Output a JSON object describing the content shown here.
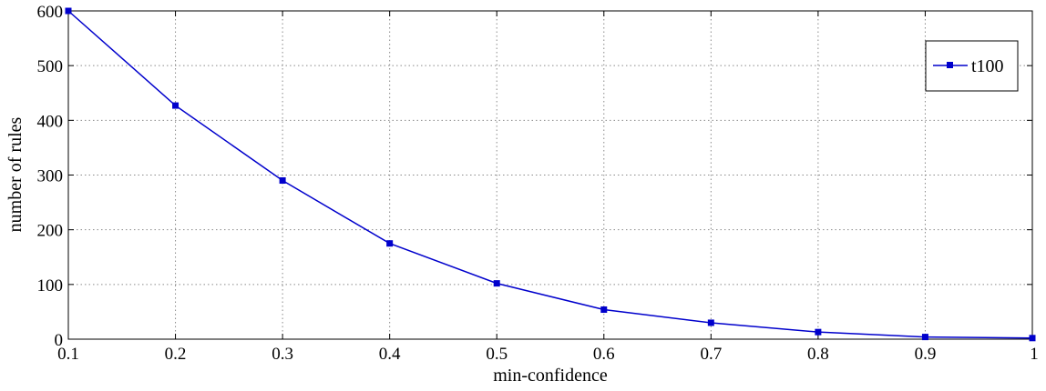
{
  "chart_data": {
    "type": "line",
    "title": "",
    "xlabel": "min-confidence",
    "ylabel": "number of rules",
    "xlim": [
      0.1,
      1
    ],
    "ylim": [
      0,
      600
    ],
    "x_ticks": [
      "0.1",
      "0.2",
      "0.3",
      "0.4",
      "0.5",
      "0.6",
      "0.7",
      "0.8",
      "0.9",
      "1"
    ],
    "y_ticks": [
      "0",
      "100",
      "200",
      "300",
      "400",
      "500",
      "600"
    ],
    "grid": true,
    "legend_position": "top-right",
    "series": [
      {
        "name": "t100",
        "color": "#0000cc",
        "marker": "square",
        "x": [
          0.1,
          0.2,
          0.3,
          0.4,
          0.5,
          0.6,
          0.7,
          0.8,
          0.9,
          1.0
        ],
        "y": [
          600,
          427,
          290,
          175,
          102,
          54,
          30,
          13,
          4,
          2
        ]
      }
    ]
  }
}
